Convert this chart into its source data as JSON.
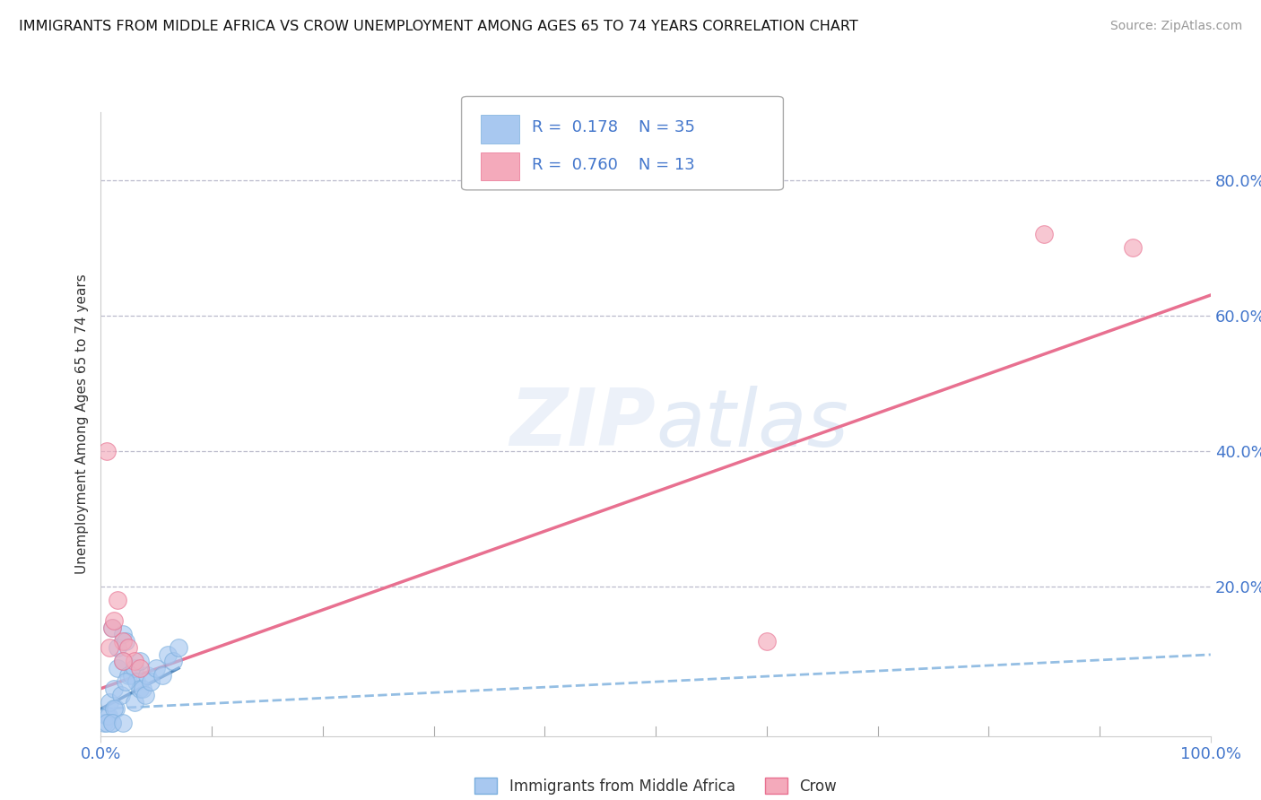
{
  "title": "IMMIGRANTS FROM MIDDLE AFRICA VS CROW UNEMPLOYMENT AMONG AGES 65 TO 74 YEARS CORRELATION CHART",
  "source": "Source: ZipAtlas.com",
  "ylabel": "Unemployment Among Ages 65 to 74 years",
  "xlim": [
    0,
    100
  ],
  "ylim": [
    -2,
    90
  ],
  "xtick_labels": [
    "0.0%",
    "100.0%"
  ],
  "ytick_labels": [
    "20.0%",
    "40.0%",
    "60.0%",
    "80.0%"
  ],
  "ytick_values": [
    20,
    40,
    60,
    80
  ],
  "legend_label1": "Immigrants from Middle Africa",
  "legend_label2": "Crow",
  "R1": "0.178",
  "N1": "35",
  "R2": "0.760",
  "N2": "13",
  "color_blue": "#A8C8F0",
  "color_pink": "#F4AABB",
  "color_blue_line": "#7AAEDD",
  "color_pink_line": "#E87090",
  "color_blue_solid": "#5588BB",
  "tick_color": "#4477CC",
  "blue_scatter_x": [
    0.3,
    0.5,
    0.7,
    0.8,
    1.0,
    1.0,
    1.2,
    1.3,
    1.5,
    1.5,
    1.8,
    2.0,
    2.0,
    2.2,
    2.5,
    2.8,
    3.0,
    3.0,
    3.2,
    3.5,
    3.8,
    4.0,
    4.2,
    4.5,
    5.0,
    5.5,
    6.0,
    6.5,
    7.0,
    1.2,
    2.2,
    3.5,
    0.5,
    1.0,
    2.0
  ],
  "blue_scatter_y": [
    0,
    1,
    1,
    3,
    0,
    14,
    5,
    2,
    8,
    11,
    4,
    9,
    13,
    12,
    7,
    7,
    3,
    8,
    6,
    5,
    5,
    4,
    7,
    6,
    8,
    7,
    10,
    9,
    11,
    2,
    6,
    9,
    0,
    0,
    0
  ],
  "pink_scatter_x": [
    0.5,
    1.0,
    1.5,
    2.0,
    2.5,
    3.0,
    3.5,
    60.0,
    85.0,
    93.0,
    0.8,
    1.2,
    2.0
  ],
  "pink_scatter_y": [
    40,
    14,
    18,
    12,
    11,
    9,
    8,
    12,
    72,
    70,
    11,
    15,
    9
  ],
  "blue_line_x": [
    0,
    100
  ],
  "blue_line_y": [
    2,
    10
  ],
  "blue_solid_line_x": [
    0,
    7
  ],
  "blue_solid_line_y": [
    2,
    8
  ],
  "pink_line_x": [
    0,
    100
  ],
  "pink_line_y": [
    5,
    63
  ]
}
